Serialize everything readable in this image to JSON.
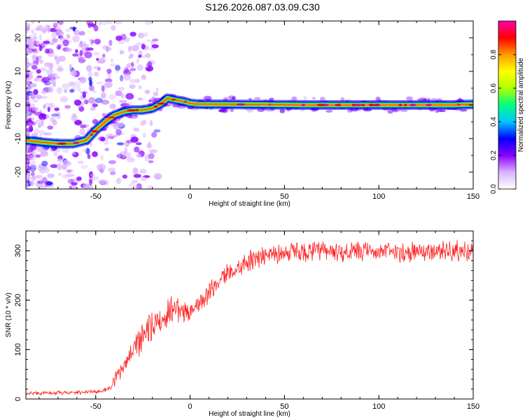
{
  "title": "S126.2026.087.03.09.C30",
  "chart_data": [
    {
      "type": "heatmap",
      "title": "S126.2026.087.03.09.C30",
      "xlabel": "Height of straight line (km)",
      "ylabel": "Frequency (Hz)",
      "xlim": [
        -87,
        150
      ],
      "ylim": [
        -25,
        25
      ],
      "xticks": [
        -50,
        0,
        50,
        100,
        150
      ],
      "yticks": [
        -20,
        -10,
        0,
        10,
        20
      ],
      "colorbar": {
        "label": "Normalized spectral amplitude",
        "ticks": [
          0.0,
          0.2,
          0.4,
          0.6,
          0.8
        ],
        "range": [
          0,
          1
        ],
        "colors": [
          "#ffffff",
          "#d9b3ff",
          "#8800ff",
          "#0000ff",
          "#00c8ff",
          "#00ff80",
          "#b0ff00",
          "#ffff00",
          "#ff9900",
          "#ff0000",
          "#ff00aa"
        ]
      },
      "ridge": {
        "x": [
          -87,
          -80,
          -70,
          -62,
          -55,
          -50,
          -45,
          -40,
          -35,
          -30,
          -25,
          -20,
          -15,
          -12,
          -8,
          -3,
          0,
          5,
          20,
          40,
          60,
          80,
          100,
          120,
          140,
          150
        ],
        "freq": [
          -10.5,
          -11,
          -11.5,
          -11.5,
          -10.5,
          -7.5,
          -5,
          -3,
          -2,
          -1.5,
          -1.5,
          -1,
          0.5,
          2,
          1.5,
          1,
          0.5,
          0.2,
          0.2,
          0.1,
          0,
          0,
          0,
          0,
          0,
          0.2
        ]
      }
    },
    {
      "type": "line",
      "xlabel": "Height of straight line (km)",
      "ylabel": "SNR (10 * v/v)",
      "xlim": [
        -87,
        150
      ],
      "ylim": [
        0,
        340
      ],
      "xticks": [
        -50,
        0,
        50,
        100,
        150
      ],
      "yticks": [
        0,
        100,
        200,
        300
      ],
      "color": "#ff2020",
      "trend": {
        "x": [
          -87,
          -70,
          -60,
          -50,
          -45,
          -42,
          -40,
          -35,
          -30,
          -25,
          -20,
          -15,
          -10,
          -5,
          0,
          5,
          10,
          15,
          20,
          25,
          30,
          35,
          40,
          50,
          60,
          80,
          100,
          120,
          140,
          150
        ],
        "y": [
          12,
          12,
          13,
          15,
          18,
          22,
          35,
          70,
          100,
          120,
          150,
          160,
          180,
          185,
          175,
          195,
          215,
          235,
          255,
          265,
          278,
          285,
          292,
          296,
          298,
          298,
          298,
          298,
          300,
          298
        ]
      },
      "noise_amplitude": 30
    }
  ]
}
